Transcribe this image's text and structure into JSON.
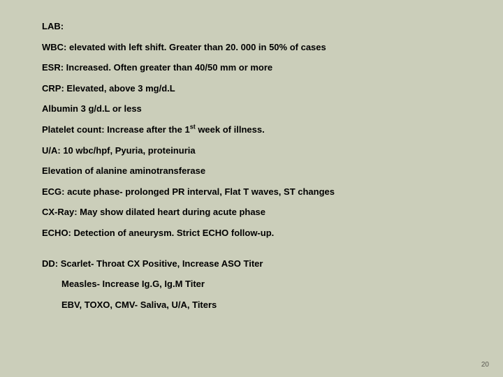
{
  "slide": {
    "background_color": "#cbceba",
    "text_color": "#000000",
    "font_size_pt": 13,
    "font_weight": "bold",
    "font_family": "Arial",
    "lines": {
      "lab": "LAB:",
      "wbc": "WBC:  elevated with left shift. Greater than 20. 000 in 50% of cases",
      "esr": "ESR:    Increased. Often greater than  40/50 mm or more",
      "crp": "CRP:    Elevated, above 3 mg/d.L",
      "albumin": "Albumin 3 g/d.L or less",
      "platelet_pre": "Platelet count:  Increase after the 1",
      "platelet_sup": "st",
      "platelet_post": "  week of illness.",
      "ua": "U/A:   10 wbc/hpf, Pyuria, proteinuria",
      "alt": "Elevation of alanine aminotransferase",
      "ecg": "ECG:  acute phase- prolonged PR interval, Flat T  waves, ST changes",
      "cxray": "CX-Ray:  May show dilated heart during acute phase",
      "echo": "ECHO:  Detection of aneurysm.  Strict ECHO follow-up.",
      "dd1": "DD: Scarlet- Throat CX Positive, Increase ASO Titer",
      "dd2": "Measles- Increase Ig.G, Ig.M Titer",
      "dd3": "EBV, TOXO, CMV- Saliva, U/A, Titers"
    },
    "page_number": "20"
  }
}
